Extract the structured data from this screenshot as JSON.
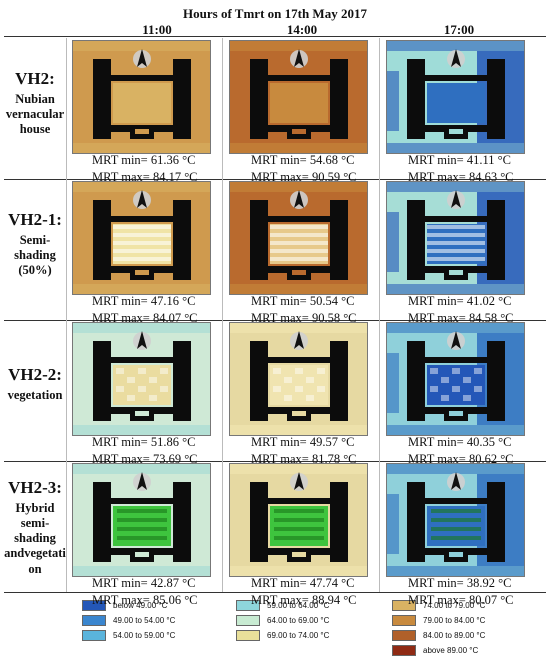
{
  "title": "Hours of Tmrt on 17th May 2017",
  "hours": [
    "11:00",
    "14:00",
    "17:00"
  ],
  "mrt_min_label": "MRT min=",
  "mrt_max_label": "MRT max=",
  "unit": "°C",
  "rows": [
    {
      "label": "VH2:",
      "description": [
        "Nubian",
        "vernacular",
        "house"
      ],
      "cells": [
        {
          "min": "61.36",
          "max": "84.17"
        },
        {
          "min": "54.68",
          "max": "90.59"
        },
        {
          "min": "41.11",
          "max": "84.63"
        }
      ]
    },
    {
      "label": "VH2-1:",
      "description": [
        "Semi-",
        "shading",
        "(50%)"
      ],
      "cells": [
        {
          "min": "47.16",
          "max": "84.07"
        },
        {
          "min": "50.54",
          "max": "90.58"
        },
        {
          "min": "41.02",
          "max": "84.58"
        }
      ]
    },
    {
      "label": "VH2-2:",
      "description": [
        "vegetation"
      ],
      "cells": [
        {
          "min": "51.86",
          "max": "73.69"
        },
        {
          "min": "49.57",
          "max": "81.78"
        },
        {
          "min": "40.35",
          "max": "80.62"
        }
      ]
    },
    {
      "label": "VH2-3:",
      "description": [
        "Hybrid",
        "semi-",
        "shading",
        "andvegetati",
        "on"
      ],
      "cells": [
        {
          "min": "42.87",
          "max": "85.06"
        },
        {
          "min": "47.74",
          "max": "88.94"
        },
        {
          "min": "38.92",
          "max": "80.07"
        }
      ]
    }
  ],
  "legend": [
    [
      {
        "label": "below 49.00 °C",
        "color": "#2457b8"
      },
      {
        "label": "49.00 to 54.00 °C",
        "color": "#3a86cf"
      },
      {
        "label": "54.00 to 59.00 °C",
        "color": "#5ab4dc"
      }
    ],
    [
      {
        "label": "59.00 to 64.00 °C",
        "color": "#8ed6dc"
      },
      {
        "label": "64.00 to 69.00 °C",
        "color": "#c8ebd2"
      },
      {
        "label": "69.00 to 74.00 °C",
        "color": "#e9e09a"
      }
    ],
    [
      {
        "label": "74.00 to 79.00 °C",
        "color": "#d9b263"
      },
      {
        "label": "79.00 to 84.00 °C",
        "color": "#c88a3e"
      },
      {
        "label": "84.00 to 89.00 °C",
        "color": "#b0602a"
      },
      {
        "label": "above 89.00 °C",
        "color": "#8f2a14"
      }
    ]
  ],
  "colors": {
    "building": "#0c0c0c",
    "courtyard_green": "#3ec43e",
    "map_backgrounds": [
      [
        "#cf9a4e",
        "#b96a2e",
        "#9fdcd8"
      ],
      [
        "#cf9a4e",
        "#b96a2e",
        "#a6ddd6"
      ],
      [
        "#cfe9d6",
        "#e6d9a2",
        "#8fd0da"
      ],
      [
        "#cfe9d6",
        "#e6d9a2",
        "#8fd0da"
      ]
    ],
    "map_edges": [
      [
        "#d9b263",
        "#c88a3e",
        "#2457b8"
      ],
      [
        "#d9b263",
        "#c88a3e",
        "#2457b8"
      ],
      [
        "#9ed8d6",
        "#f2e7b2",
        "#2f6fc0"
      ],
      [
        "#9ed8d6",
        "#f2e7b2",
        "#2f6fc0"
      ]
    ],
    "courtyard_fills": [
      [
        "#d9b263",
        "#c88a3e",
        "#2f6fc0"
      ],
      [
        "#f0e4a6",
        "#e7c98a",
        "#2f6fc0"
      ],
      [
        "#eadca0",
        "#f0e4b0",
        "#2457b8"
      ],
      [
        "#3ec43e",
        "#3ec43e",
        "#2f6fc0"
      ]
    ]
  }
}
